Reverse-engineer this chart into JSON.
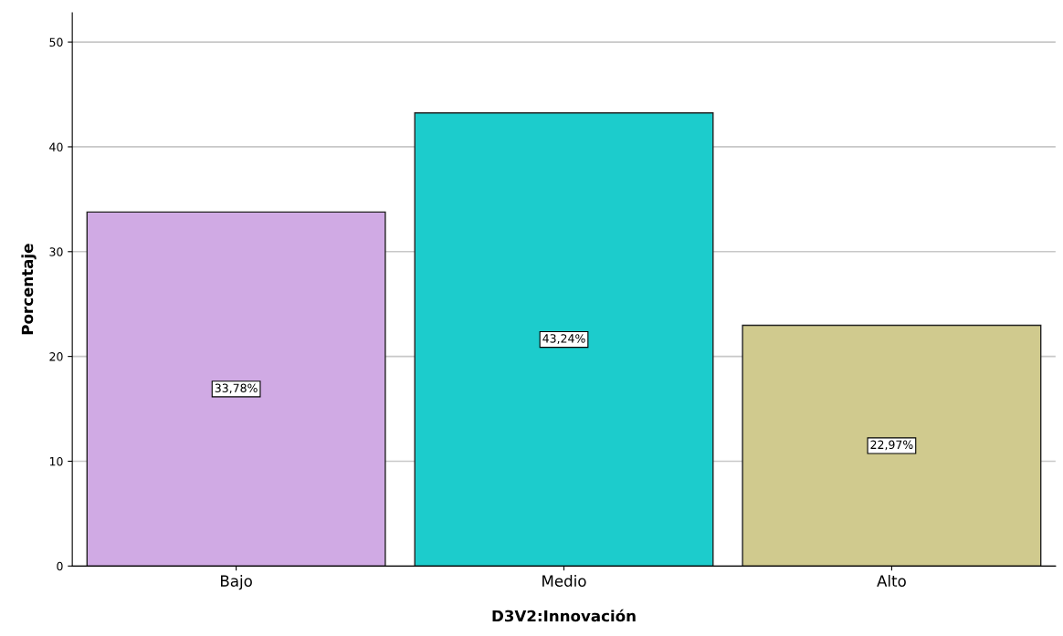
{
  "chart_data": {
    "type": "bar",
    "xlabel": "D3V2:Innovación",
    "ylabel": "Porcentaje",
    "categories": [
      "Bajo",
      "Medio",
      "Alto"
    ],
    "values": [
      33.78,
      43.24,
      22.97
    ],
    "colors": [
      "#d0aae4",
      "#1ccccc",
      "#d0ca8e"
    ],
    "value_labels": [
      "33,78%",
      "43,24%",
      "22,97%"
    ],
    "ylim": [
      0,
      52.8
    ],
    "yticks": [
      0,
      10,
      20,
      30,
      40,
      50
    ],
    "grid": "y"
  }
}
